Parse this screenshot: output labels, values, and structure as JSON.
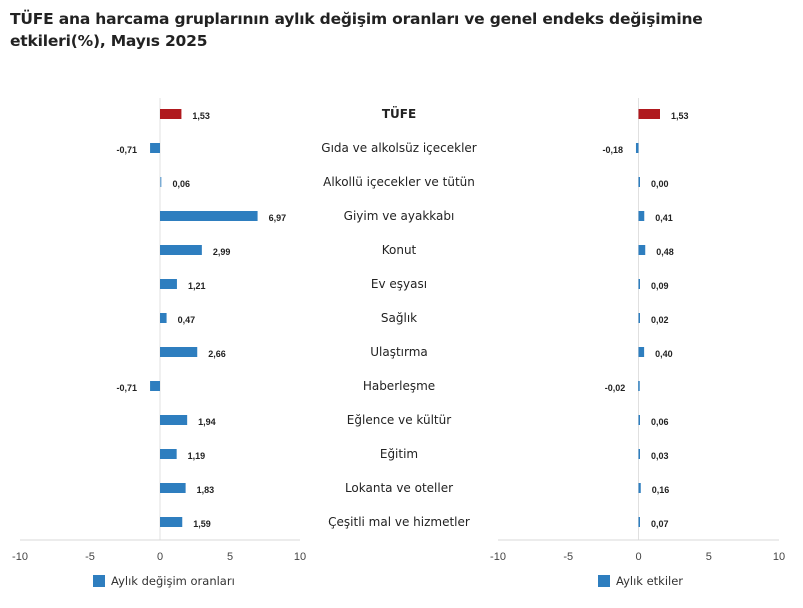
{
  "chart_data": [
    {
      "type": "bar",
      "orientation": "horizontal",
      "title": "TÜFE ana harcama gruplarının aylık değişim oranları ve genel endeks değişimine etkileri(%), Mayıs 2025",
      "categories": [
        "TÜFE",
        "Gıda ve alkolsüz içecekler",
        "Alkollü içecekler ve tütün",
        "Giyim ve ayakkabı",
        "Konut",
        "Ev eşyası",
        "Sağlık",
        "Ulaştırma",
        "Haberleşme",
        "Eğlence ve kültür",
        "Eğitim",
        "Lokanta ve oteller",
        "Çeşitli mal ve hizmetler"
      ],
      "series": [
        {
          "name": "Aylık değişim oranları",
          "values": [
            1.53,
            -0.71,
            0.06,
            6.97,
            2.99,
            1.21,
            0.47,
            2.66,
            -0.71,
            1.94,
            1.19,
            1.83,
            1.59
          ]
        }
      ],
      "labels": [
        "1,53",
        "-0,71",
        "0,06",
        "6,97",
        "2,99",
        "1,21",
        "0,47",
        "2,66",
        "-0,71",
        "1,94",
        "1,19",
        "1,83",
        "1,59"
      ],
      "xlim": [
        -10,
        10
      ],
      "ticks": [
        "-10",
        "-5",
        "0",
        "5",
        "10"
      ],
      "legend": "bottom",
      "colors": {
        "bar": "#2e7ebf",
        "highlight": "#b0191e"
      }
    },
    {
      "type": "bar",
      "orientation": "horizontal",
      "series": [
        {
          "name": "Aylık etkiler",
          "values": [
            1.53,
            -0.18,
            0.0,
            0.41,
            0.48,
            0.09,
            0.02,
            0.4,
            -0.02,
            0.06,
            0.03,
            0.16,
            0.07
          ]
        }
      ],
      "labels": [
        "1,53",
        "-0,18",
        "0,00",
        "0,41",
        "0,48",
        "0,09",
        "0,02",
        "0,40",
        "-0,02",
        "0,06",
        "0,03",
        "0,16",
        "0,07"
      ],
      "xlim": [
        -10,
        10
      ],
      "ticks": [
        "-10",
        "-5",
        "0",
        "5",
        "10"
      ],
      "legend": "bottom",
      "colors": {
        "bar": "#2e7ebf",
        "highlight": "#b0191e"
      }
    }
  ]
}
